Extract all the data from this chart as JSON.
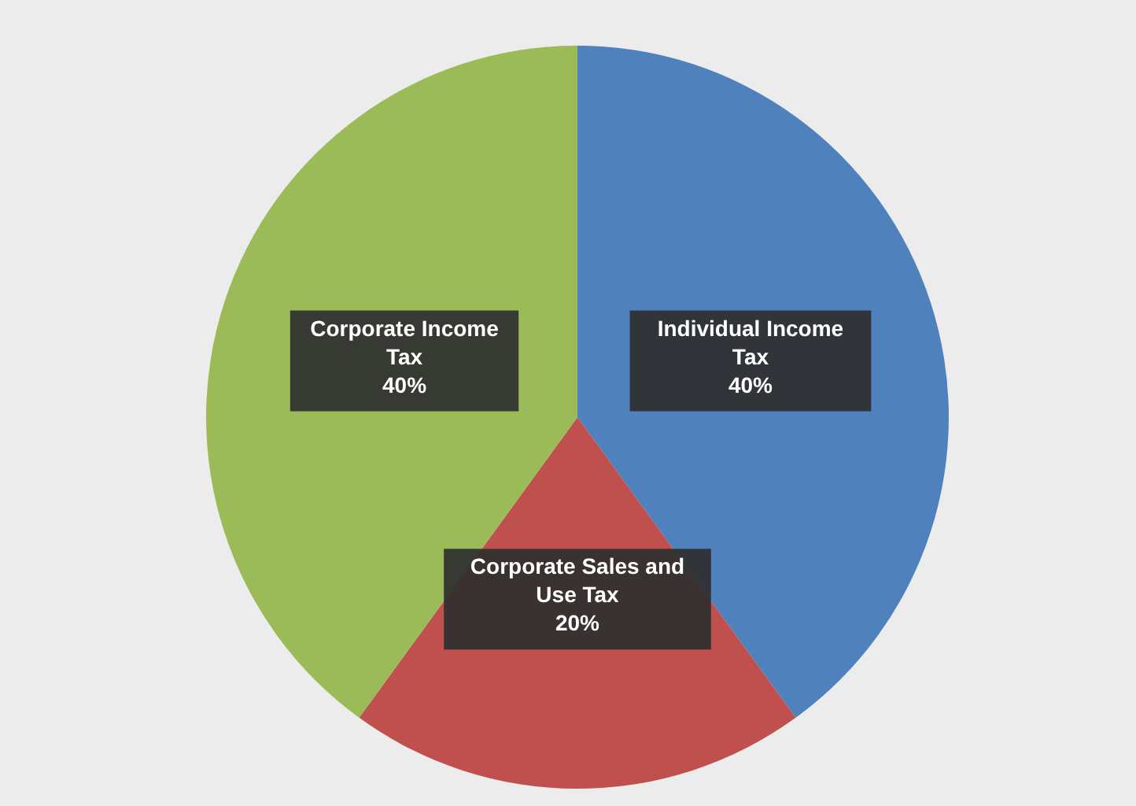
{
  "chart_data": {
    "type": "pie",
    "categories": [
      "Individual Income Tax",
      "Corporate Sales and Use Tax",
      "Corporate Income Tax"
    ],
    "values": [
      40,
      20,
      40
    ],
    "colors": [
      "#4f81bd",
      "#c0504d",
      "#9bbb59"
    ],
    "value_labels": [
      "40%",
      "20%",
      "40%"
    ]
  }
}
